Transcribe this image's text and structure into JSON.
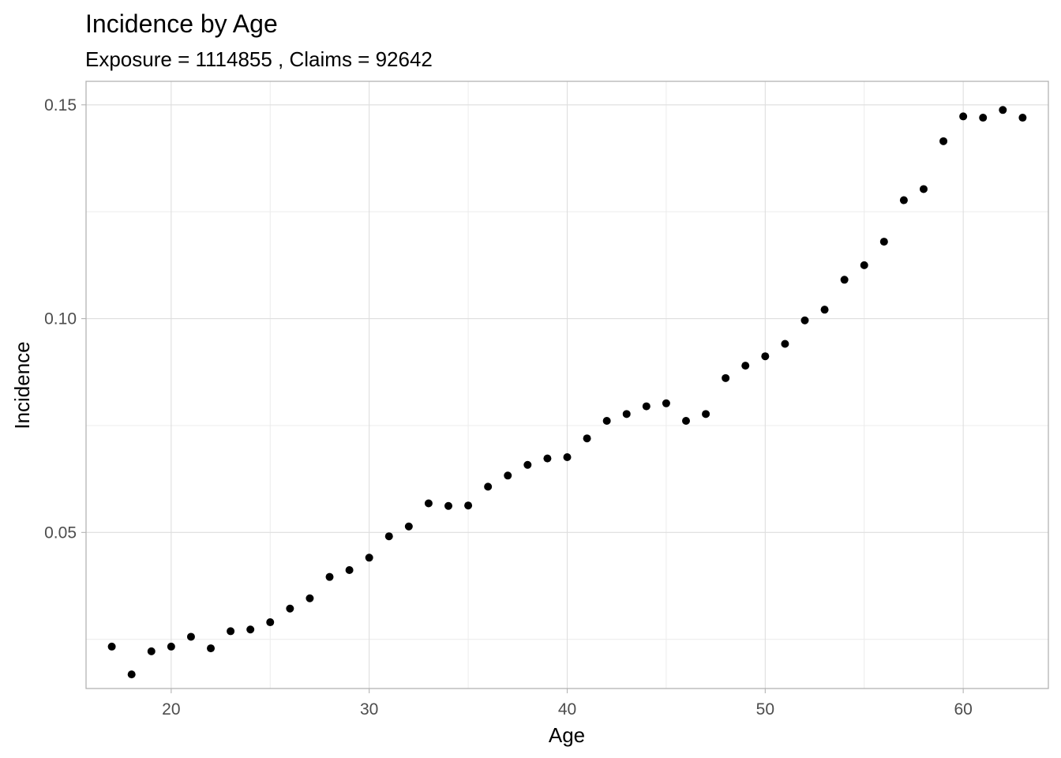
{
  "chart_data": {
    "type": "scatter",
    "title": "Incidence by Age",
    "subtitle": "Exposure = 1114855 , Claims =  92642",
    "xlabel": "Age",
    "ylabel": "Incidence",
    "xlim": [
      15.7,
      64.3
    ],
    "ylim": [
      0.0135,
      0.1555
    ],
    "x_ticks": [
      20,
      30,
      40,
      50,
      60
    ],
    "x_tick_labels": [
      "20",
      "30",
      "40",
      "50",
      "60"
    ],
    "y_ticks": [
      0.05,
      0.1,
      0.15
    ],
    "y_tick_labels": [
      "0.05",
      "0.10",
      "0.15"
    ],
    "grid": true,
    "point_color": "#000000",
    "x": [
      17,
      18,
      19,
      20,
      21,
      22,
      23,
      24,
      25,
      26,
      27,
      28,
      29,
      30,
      31,
      32,
      33,
      34,
      35,
      36,
      37,
      38,
      39,
      40,
      41,
      42,
      43,
      44,
      45,
      46,
      47,
      48,
      49,
      50,
      51,
      52,
      53,
      54,
      55,
      56,
      57,
      58,
      59,
      60,
      61,
      62,
      63
    ],
    "y": [
      0.0233,
      0.0168,
      0.0222,
      0.0233,
      0.0256,
      0.0229,
      0.0269,
      0.0273,
      0.029,
      0.0322,
      0.0346,
      0.0396,
      0.0412,
      0.0441,
      0.0491,
      0.0514,
      0.0568,
      0.0562,
      0.0563,
      0.0607,
      0.0633,
      0.0658,
      0.0673,
      0.0676,
      0.072,
      0.0761,
      0.0777,
      0.0795,
      0.0802,
      0.0761,
      0.0777,
      0.0861,
      0.089,
      0.0912,
      0.0941,
      0.0996,
      0.1021,
      0.1091,
      0.1125,
      0.118,
      0.1277,
      0.1303,
      0.1415,
      0.1473,
      0.147,
      0.1488,
      0.147
    ]
  }
}
